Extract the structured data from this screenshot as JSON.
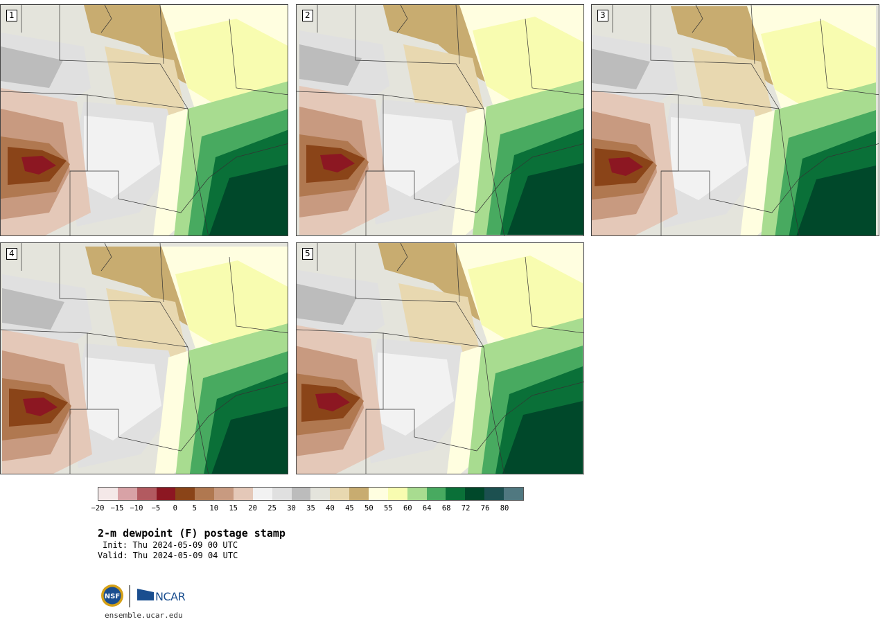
{
  "panels": [
    {
      "id": 1,
      "label": "1"
    },
    {
      "id": 2,
      "label": "2"
    },
    {
      "id": 3,
      "label": "3"
    },
    {
      "id": 4,
      "label": "4"
    },
    {
      "id": 5,
      "label": "5"
    }
  ],
  "colorbar": {
    "colors": [
      "#f4e8e8",
      "#d8a2a6",
      "#b25a60",
      "#8c1722",
      "#8a4418",
      "#b07850",
      "#c89a80",
      "#e4c8b8",
      "#f2f2f2",
      "#e0e0e0",
      "#bcbcbc",
      "#e4e4dc",
      "#e8d8b0",
      "#c8ac70",
      "#fffee0",
      "#f8fcb0",
      "#a8dc90",
      "#48aa60",
      "#0a7038",
      "#00482a",
      "#1c5050",
      "#507880"
    ],
    "ticks": [
      "−20",
      "−15",
      "−10",
      "−5",
      "0",
      "5",
      "10",
      "15",
      "20",
      "25",
      "30",
      "35",
      "40",
      "45",
      "50",
      "55",
      "60",
      "64",
      "68",
      "72",
      "76",
      "80"
    ]
  },
  "title": "2-m dewpoint (F) postage stamp",
  "init": "Init: Thu 2024-05-09 00 UTC",
  "valid": "Valid: Thu 2024-05-09 04 UTC",
  "logo": {
    "nsf": "NSF",
    "ncar": "NCAR"
  },
  "site": "ensemble.ucar.edu"
}
